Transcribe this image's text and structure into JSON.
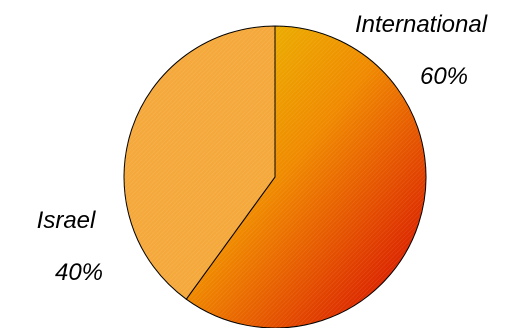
{
  "chart_data": {
    "type": "pie",
    "slices": [
      {
        "label": "International",
        "value": 60,
        "value_label": "60%"
      },
      {
        "label": "Israel",
        "value": 40,
        "value_label": "40%"
      }
    ],
    "title": "",
    "legend": "none",
    "colors": {
      "international_start": "#e8c400",
      "international_mid": "#f08a00",
      "international_end": "#d40000",
      "israel": "#f5a93c",
      "outline": "#000000"
    }
  }
}
